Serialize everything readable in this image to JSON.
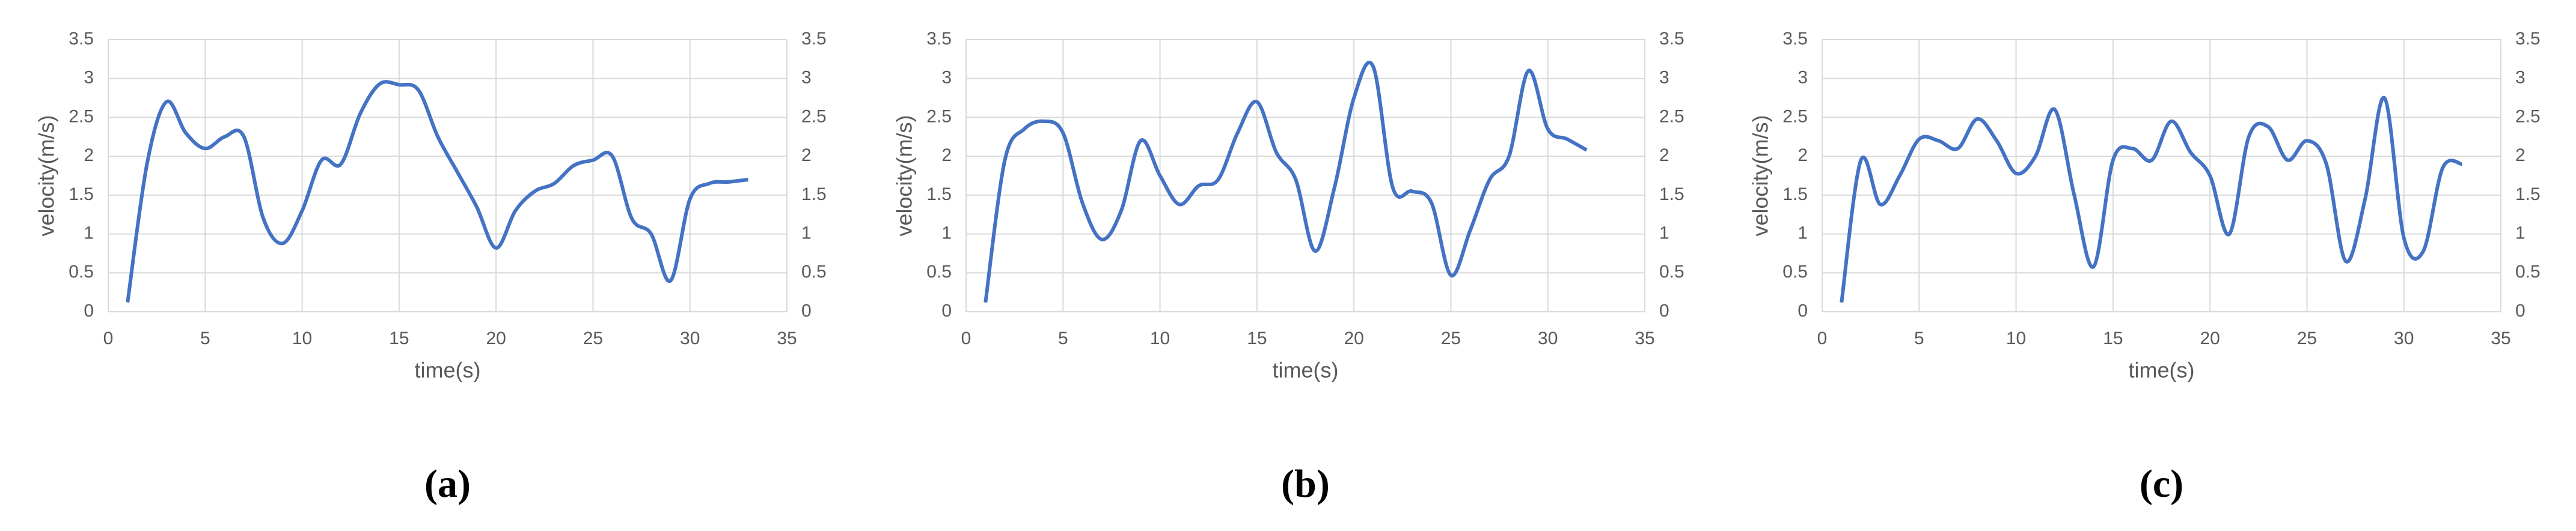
{
  "chart_data": [
    {
      "type": "line",
      "caption": "(a)",
      "xlabel": "time(s)",
      "ylabel": "velocity(m/s)",
      "color": "#4472c4",
      "grid": true,
      "x": [
        1,
        2,
        3,
        4,
        5,
        6,
        7,
        8,
        9,
        10,
        11,
        12,
        13,
        14,
        15,
        16,
        17,
        18,
        19,
        20,
        21,
        22,
        23,
        24,
        25,
        26,
        27,
        28,
        29,
        30,
        31,
        32,
        33
      ],
      "values": [
        0.12,
        1.9,
        2.7,
        2.3,
        2.1,
        2.25,
        2.25,
        1.2,
        0.88,
        1.3,
        1.95,
        1.9,
        2.55,
        2.93,
        2.92,
        2.85,
        2.25,
        1.8,
        1.35,
        0.82,
        1.3,
        1.55,
        1.65,
        1.88,
        1.95,
        2.0,
        1.2,
        1.0,
        0.4,
        1.45,
        1.65,
        1.67,
        1.7
      ],
      "xlim": [
        0,
        35
      ],
      "xticks": [
        0,
        5,
        10,
        15,
        20,
        25,
        30,
        35
      ],
      "ylim": [
        0,
        3.5
      ],
      "yticks": [
        0,
        0.5,
        1,
        1.5,
        2,
        2.5,
        3,
        3.5
      ],
      "y2lim": [
        0,
        3.5
      ],
      "y2ticks": [
        0,
        0.5,
        1,
        1.5,
        2,
        2.5,
        3,
        3.5
      ]
    },
    {
      "type": "line",
      "caption": "(b)",
      "xlabel": "time(s)",
      "ylabel": "velocity(m/s)",
      "color": "#4472c4",
      "grid": true,
      "x": [
        1,
        2,
        3,
        4,
        5,
        6,
        7,
        8,
        9,
        10,
        11,
        12,
        13,
        14,
        15,
        16,
        17,
        18,
        19,
        20,
        21,
        22,
        23,
        24,
        25,
        26,
        27,
        28,
        29,
        30,
        31,
        32
      ],
      "values": [
        0.12,
        1.95,
        2.35,
        2.45,
        2.3,
        1.4,
        0.93,
        1.3,
        2.2,
        1.75,
        1.38,
        1.62,
        1.7,
        2.3,
        2.7,
        2.05,
        1.7,
        0.78,
        1.6,
        2.75,
        3.15,
        1.6,
        1.55,
        1.4,
        0.47,
        1.05,
        1.7,
        2.0,
        3.1,
        2.35,
        2.22,
        2.08
      ],
      "xlim": [
        0,
        35
      ],
      "xticks": [
        0,
        5,
        10,
        15,
        20,
        25,
        30,
        35
      ],
      "ylim": [
        0,
        3.5
      ],
      "yticks": [
        0,
        0.5,
        1,
        1.5,
        2,
        2.5,
        3,
        3.5
      ],
      "y2lim": [
        0,
        3.5
      ],
      "y2ticks": [
        0,
        0.5,
        1,
        1.5,
        2,
        2.5,
        3,
        3.5
      ]
    },
    {
      "type": "line",
      "caption": "(c)",
      "xlabel": "time(s)",
      "ylabel": "velocity(m/s)",
      "color": "#4472c4",
      "grid": true,
      "x": [
        1,
        2,
        3,
        4,
        5,
        6,
        7,
        8,
        9,
        10,
        11,
        12,
        13,
        14,
        15,
        16,
        17,
        18,
        19,
        20,
        21,
        22,
        23,
        24,
        25,
        26,
        27,
        28,
        29,
        30,
        31,
        32,
        33
      ],
      "values": [
        0.12,
        1.95,
        1.38,
        1.75,
        2.22,
        2.2,
        2.1,
        2.48,
        2.2,
        1.78,
        2.0,
        2.6,
        1.5,
        0.58,
        1.95,
        2.1,
        1.95,
        2.45,
        2.05,
        1.75,
        1.0,
        2.25,
        2.38,
        1.95,
        2.2,
        1.9,
        0.65,
        1.45,
        2.75,
        0.95,
        0.78,
        1.85,
        1.9
      ],
      "xlim": [
        0,
        35
      ],
      "xticks": [
        0,
        5,
        10,
        15,
        20,
        25,
        30,
        35
      ],
      "ylim": [
        0,
        3.5
      ],
      "yticks": [
        0,
        0.5,
        1,
        1.5,
        2,
        2.5,
        3,
        3.5
      ],
      "y2lim": [
        0,
        3.5
      ],
      "y2ticks": [
        0,
        0.5,
        1,
        1.5,
        2,
        2.5,
        3,
        3.5
      ]
    }
  ]
}
